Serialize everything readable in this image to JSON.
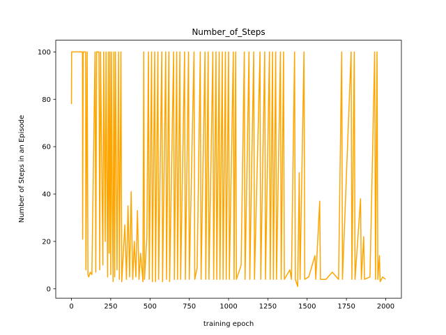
{
  "chart_data": {
    "type": "line",
    "title": "Number_of_Steps",
    "x_label": "training epoch",
    "y_label": "Number of Steps in an Episode",
    "xlim": [
      -100,
      2100
    ],
    "ylim": [
      -3.95,
      104.95
    ],
    "xticks": [
      0,
      250,
      500,
      750,
      1000,
      1250,
      1500,
      1750,
      2000
    ],
    "yticks": [
      0,
      20,
      40,
      60,
      80,
      100
    ],
    "series": [
      {
        "color": "#ffa500",
        "x": [
          0,
          1,
          70,
          71,
          75,
          90,
          92,
          100,
          105,
          110,
          120,
          130,
          150,
          155,
          160,
          175,
          180,
          185,
          200,
          205,
          215,
          220,
          225,
          230,
          235,
          240,
          245,
          250,
          255,
          260,
          265,
          270,
          275,
          280,
          290,
          300,
          305,
          315,
          320,
          340,
          350,
          360,
          370,
          380,
          390,
          400,
          410,
          420,
          430,
          440,
          455,
          460,
          465,
          480,
          490,
          495,
          510,
          515,
          530,
          535,
          550,
          555,
          575,
          580,
          600,
          605,
          620,
          625,
          650,
          655,
          670,
          675,
          690,
          695,
          720,
          725,
          745,
          750,
          780,
          785,
          800,
          820,
          825,
          850,
          855,
          870,
          875,
          900,
          905,
          920,
          925,
          940,
          945,
          960,
          965,
          980,
          985,
          1000,
          1005,
          1030,
          1035,
          1045,
          1050,
          1080,
          1100,
          1105,
          1130,
          1135,
          1160,
          1165,
          1200,
          1205,
          1230,
          1235,
          1260,
          1265,
          1280,
          1285,
          1300,
          1305,
          1330,
          1335,
          1350,
          1355,
          1390,
          1400,
          1420,
          1425,
          1440,
          1450,
          1455,
          1480,
          1485,
          1510,
          1550,
          1555,
          1580,
          1585,
          1620,
          1660,
          1700,
          1720,
          1725,
          1780,
          1785,
          1800,
          1805,
          1840,
          1845,
          1860,
          1865,
          1900,
          1930,
          1935,
          1945,
          1950,
          1960,
          1965,
          1980,
          1999
        ],
        "values": [
          78,
          100,
          100,
          21,
          100,
          100,
          8,
          100,
          6,
          5,
          7,
          6,
          100,
          7,
          100,
          100,
          8,
          100,
          10,
          100,
          20,
          100,
          50,
          5,
          100,
          15,
          100,
          6,
          100,
          35,
          3,
          100,
          5,
          100,
          8,
          100,
          4,
          100,
          3,
          27,
          4,
          35,
          5,
          41,
          4,
          20,
          5,
          33,
          4,
          15,
          3,
          100,
          4,
          22,
          100,
          4,
          100,
          3,
          100,
          3,
          100,
          4,
          100,
          3,
          100,
          4,
          100,
          3,
          100,
          4,
          100,
          4,
          100,
          4,
          100,
          4,
          100,
          4,
          100,
          4,
          9,
          100,
          4,
          100,
          4,
          100,
          4,
          100,
          4,
          100,
          4,
          100,
          4,
          100,
          4,
          100,
          4,
          100,
          4,
          100,
          4,
          100,
          4,
          10,
          100,
          4,
          100,
          4,
          100,
          4,
          100,
          4,
          100,
          4,
          100,
          4,
          100,
          4,
          100,
          4,
          100,
          4,
          100,
          4,
          8,
          4,
          100,
          4,
          1,
          49,
          4,
          100,
          4,
          5,
          14,
          4,
          37,
          4,
          4,
          7,
          4,
          100,
          4,
          100,
          4,
          100,
          4,
          38,
          4,
          22,
          4,
          5,
          100,
          4,
          100,
          4,
          14,
          3,
          5,
          4
        ]
      }
    ]
  }
}
